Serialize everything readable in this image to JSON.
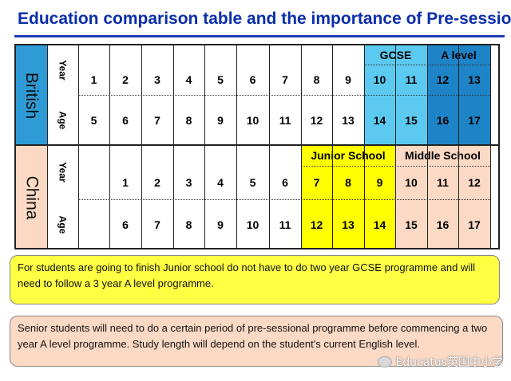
{
  "title": "Education comparison table and the importance of Pre-sessional",
  "british": {
    "label": "British",
    "year_label": "Year",
    "age_label": "Age",
    "years": [
      "1",
      "2",
      "3",
      "4",
      "5",
      "6",
      "7",
      "8",
      "9",
      "10",
      "11",
      "12",
      "13"
    ],
    "ages": [
      "5",
      "6",
      "7",
      "8",
      "9",
      "10",
      "11",
      "12",
      "13",
      "14",
      "15",
      "16",
      "17"
    ],
    "gcse_label": "GCSE",
    "alevel_label": "A level"
  },
  "china": {
    "label": "China",
    "year_label": "Year",
    "age_label": "Age",
    "years": [
      "",
      "1",
      "2",
      "3",
      "4",
      "5",
      "6",
      "7",
      "8",
      "9",
      "10",
      "11",
      "12"
    ],
    "ages": [
      "",
      "6",
      "7",
      "8",
      "9",
      "10",
      "11",
      "12",
      "13",
      "14",
      "15",
      "16",
      "17"
    ],
    "junior_label": "Junior School",
    "middle_label": "Middle School"
  },
  "notes": {
    "note1": "For students are going to finish Junior school do not have to do two year GCSE programme and will need to follow a 3 year A level programme.",
    "note2": "Senior students will need to do a certain period of pre-sessional programme before commencing a two year A level programme. Study length will depend on the student's current English level."
  },
  "watermark": "Educatus英国中小学",
  "colors": {
    "title": "#0a2ea8",
    "british_bg": "#2e9bd6",
    "gcse_bg": "#5ccaf0",
    "alevel_bg": "#1e84c8",
    "china_bg": "#fbd9c4",
    "junior_bg": "#ffff00",
    "note1_bg": "#ffff44",
    "note2_bg": "#fbd9c4"
  }
}
